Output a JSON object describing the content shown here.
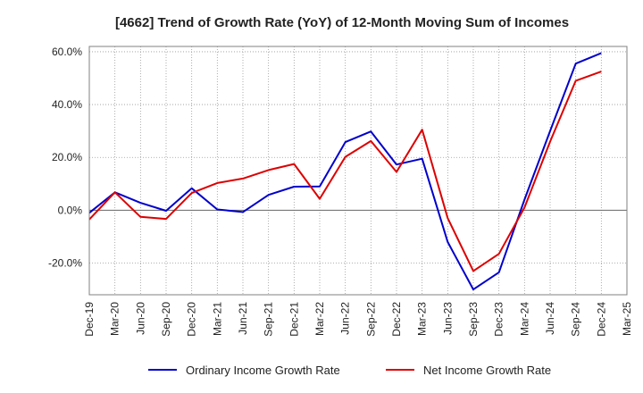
{
  "chart_data": {
    "type": "line",
    "title": "[4662]  Trend of Growth Rate (YoY) of 12-Month Moving Sum of Incomes",
    "xlabel": "",
    "ylabel": "",
    "categories": [
      "Dec-19",
      "Mar-20",
      "Jun-20",
      "Sep-20",
      "Dec-20",
      "Mar-21",
      "Jun-21",
      "Sep-21",
      "Dec-21",
      "Mar-22",
      "Jun-22",
      "Sep-22",
      "Dec-22",
      "Mar-23",
      "Jun-23",
      "Sep-23",
      "Dec-23",
      "Mar-24",
      "Jun-24",
      "Sep-24",
      "Dec-24",
      "Mar-25"
    ],
    "ylim": [
      -32,
      62
    ],
    "yticks": [
      60,
      40,
      20,
      0,
      -20
    ],
    "ytick_labels": [
      "60.0%",
      "40.0%",
      "20.0%",
      "0.0%",
      "-20.0%"
    ],
    "grid": true,
    "legend_position": "bottom",
    "series": [
      {
        "name": "Ordinary Income Growth Rate",
        "color": "#0000cc",
        "values": [
          -1.0,
          6.8,
          2.8,
          -0.2,
          8.3,
          0.3,
          -0.7,
          5.8,
          8.9,
          9.0,
          25.8,
          29.8,
          17.3,
          19.5,
          -12.0,
          -30.0,
          -23.5,
          4.0,
          30.0,
          55.5,
          59.5,
          null
        ]
      },
      {
        "name": "Net Income Growth Rate",
        "color": "#dd0000",
        "values": [
          -3.5,
          6.8,
          -2.5,
          -3.3,
          6.5,
          10.3,
          12.0,
          15.2,
          17.5,
          4.3,
          20.2,
          26.2,
          14.5,
          30.5,
          -3.0,
          -23.0,
          -16.5,
          1.0,
          26.0,
          49.0,
          52.5,
          null
        ]
      }
    ]
  }
}
